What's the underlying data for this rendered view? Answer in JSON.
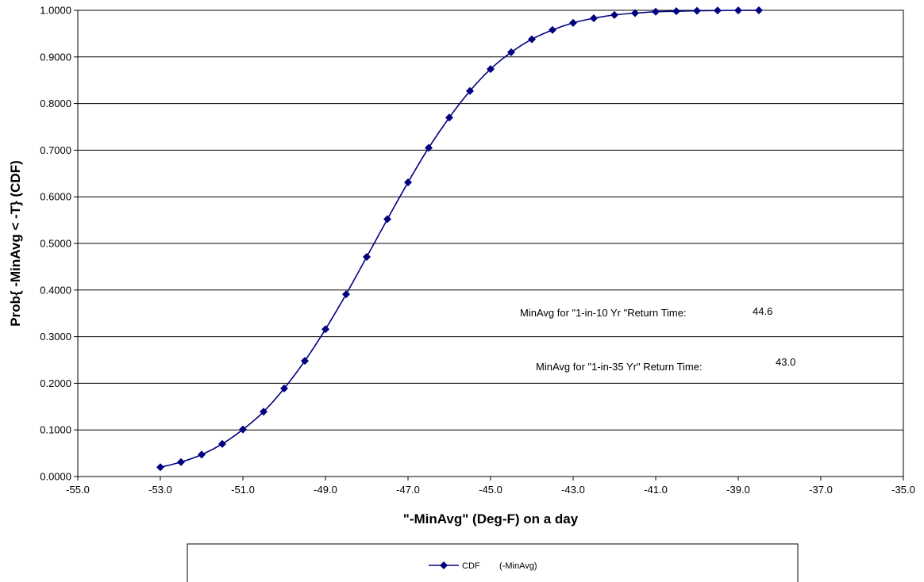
{
  "chart_data": {
    "type": "line",
    "title": "",
    "xlabel": "\"-MinAvg\" (Deg-F) on a day",
    "ylabel": "Prob{ -MinAvg < -T} (CDF)",
    "xlim": [
      -55,
      -35
    ],
    "ylim": [
      0,
      1
    ],
    "x_ticks": [
      -55,
      -53,
      -51,
      -49,
      -47,
      -45,
      -43,
      -41,
      -39,
      -37,
      -35
    ],
    "x_tick_labels": [
      "-55.0",
      "-53.0",
      "-51.0",
      "-49.0",
      "-47.0",
      "-45.0",
      "-43.0",
      "-41.0",
      "-39.0",
      "-37.0",
      "-35.0"
    ],
    "y_ticks": [
      0,
      0.1,
      0.2,
      0.3,
      0.4,
      0.5,
      0.6,
      0.7,
      0.8,
      0.9,
      1.0
    ],
    "y_tick_labels": [
      "0.0000",
      "0.1000",
      "0.2000",
      "0.3000",
      "0.4000",
      "0.5000",
      "0.6000",
      "0.7000",
      "0.8000",
      "0.9000",
      "1.0000"
    ],
    "grid": "horizontal",
    "legend_position": "bottom",
    "series": [
      {
        "name": "CDF        (-MinAvg)",
        "color": "#000080",
        "marker": "diamond",
        "x": [
          -53.0,
          -52.5,
          -52.0,
          -51.5,
          -51.0,
          -50.5,
          -50.0,
          -49.5,
          -49.0,
          -48.5,
          -48.0,
          -47.5,
          -47.0,
          -46.5,
          -46.0,
          -45.5,
          -45.0,
          -44.5,
          -44.0,
          -43.5,
          -43.0,
          -42.5,
          -42.0,
          -41.5,
          -41.0,
          -40.5,
          -40.0,
          -39.5,
          -39.0,
          -38.5
        ],
        "y": [
          0.02,
          0.031,
          0.047,
          0.07,
          0.101,
          0.139,
          0.189,
          0.248,
          0.316,
          0.391,
          0.471,
          0.552,
          0.631,
          0.705,
          0.77,
          0.827,
          0.874,
          0.91,
          0.938,
          0.958,
          0.973,
          0.983,
          0.99,
          0.994,
          0.997,
          0.998,
          0.999,
          0.9995,
          0.9998,
          0.9999
        ]
      }
    ],
    "annotations": [
      {
        "label": "MinAvg  for \"1-in-10 Yr  \"Return  Time:",
        "value": "44.6"
      },
      {
        "label": "MinAvg  for \"1-in-35 Yr\" Return Time:",
        "value": "43.0"
      }
    ]
  }
}
